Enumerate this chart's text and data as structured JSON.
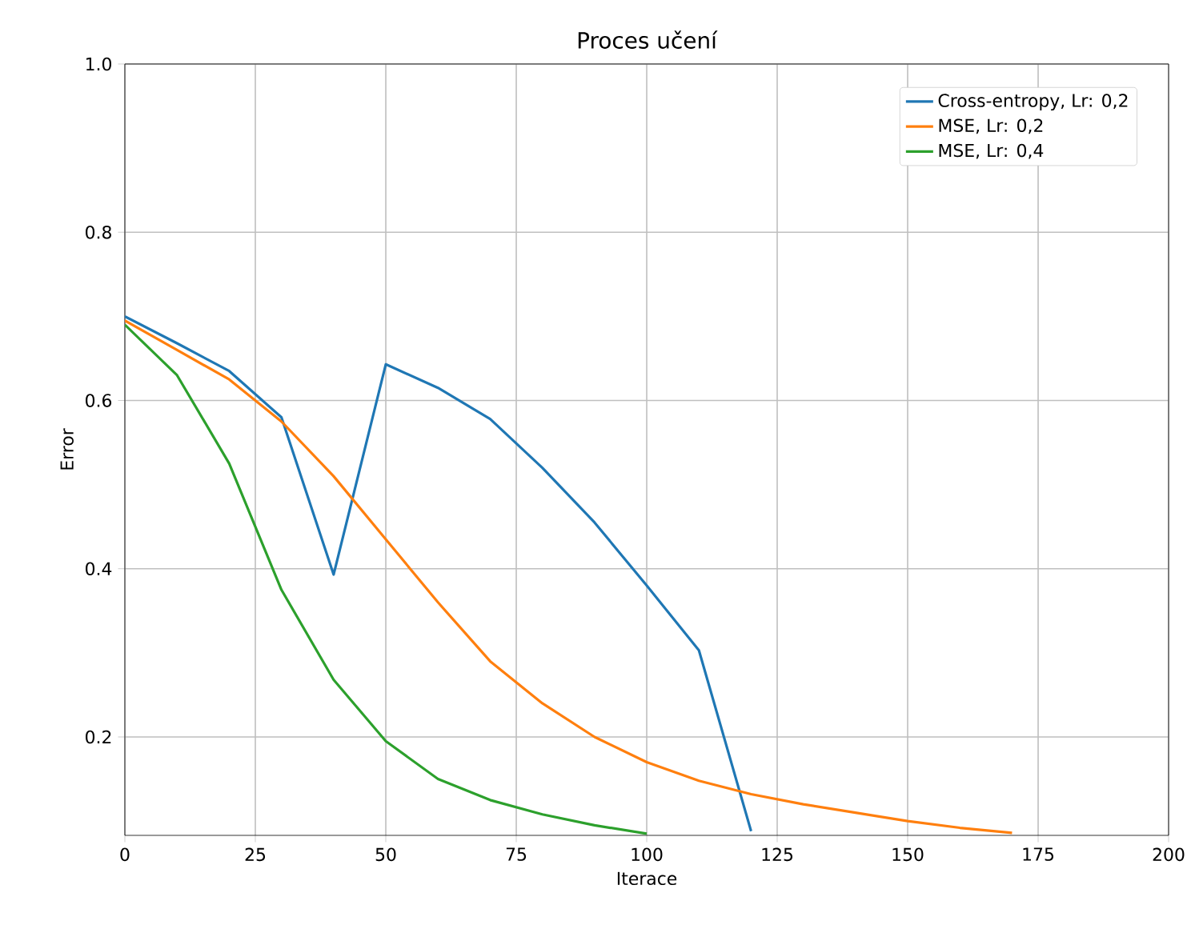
{
  "chart_data": {
    "type": "line",
    "title": "Proces učení",
    "xlabel": "Iterace",
    "ylabel": "Error",
    "xlim": [
      0,
      200
    ],
    "xticks": [
      0,
      25,
      50,
      75,
      100,
      125,
      150,
      175,
      200
    ],
    "ylim": [
      0.083,
      1.0
    ],
    "yticks": [
      0.2,
      0.4,
      0.6,
      0.8,
      {
        "value": 1,
        "label": "1.0"
      }
    ],
    "grid": true,
    "legend": "top right",
    "series": [
      {
        "name": "Cross-entropy, Lr: 0,2",
        "color": "#1f77b4",
        "x": [
          0,
          10,
          20,
          30,
          40,
          50,
          60,
          70,
          80,
          90,
          100,
          110,
          120
        ],
        "values": [
          0.7,
          0.668,
          0.635,
          0.58,
          0.393,
          0.643,
          0.615,
          0.578,
          0.52,
          0.455,
          0.38,
          0.303,
          0.088
        ]
      },
      {
        "name": "MSE, Lr: 0,2",
        "color": "#ff7f0e",
        "x": [
          0,
          10,
          20,
          30,
          40,
          50,
          60,
          70,
          80,
          90,
          100,
          110,
          120,
          130,
          140,
          150,
          160,
          170
        ],
        "values": [
          0.695,
          0.66,
          0.625,
          0.575,
          0.51,
          0.435,
          0.36,
          0.29,
          0.24,
          0.2,
          0.17,
          0.148,
          0.132,
          0.12,
          0.11,
          0.1,
          0.092,
          0.086
        ]
      },
      {
        "name": "MSE, Lr: 0,4",
        "color": "#2ca02c",
        "x": [
          0,
          10,
          20,
          30,
          40,
          50,
          60,
          70,
          80,
          90,
          100
        ],
        "values": [
          0.69,
          0.63,
          0.525,
          0.375,
          0.268,
          0.195,
          0.15,
          0.125,
          0.108,
          0.095,
          0.085
        ]
      }
    ]
  }
}
